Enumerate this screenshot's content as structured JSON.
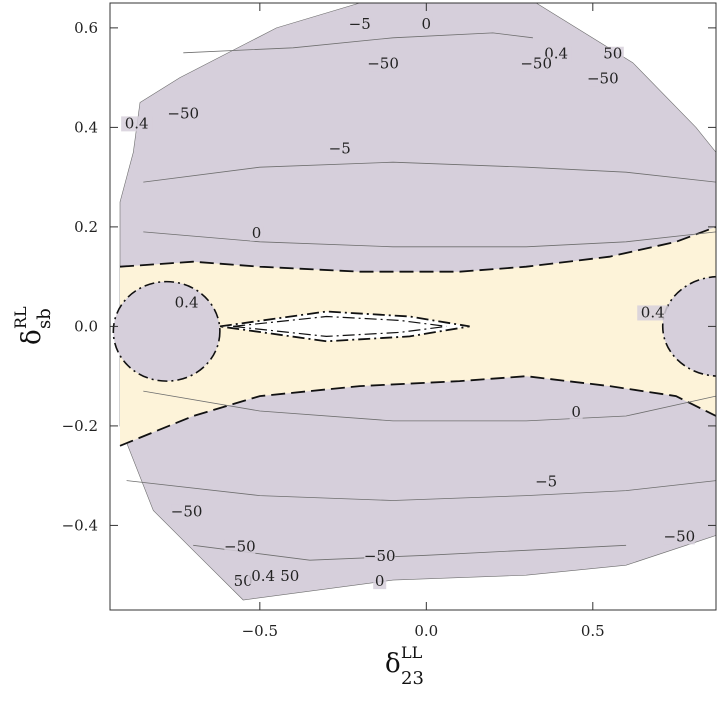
{
  "chart_data": {
    "type": "contour",
    "xlabel": {
      "symbol": "δ",
      "superscript": "LL",
      "subscript": "23"
    },
    "ylabel": {
      "symbol": "δ",
      "superscript": "RL",
      "subscript": "sb"
    },
    "xlim": [
      -0.95,
      0.87
    ],
    "ylim": [
      -0.57,
      0.65
    ],
    "x_ticks": [
      {
        "value": -0.5,
        "label": "−0.5"
      },
      {
        "value": 0.0,
        "label": "0.0"
      },
      {
        "value": 0.5,
        "label": "0.5"
      }
    ],
    "y_ticks": [
      {
        "value": -0.4,
        "label": "−0.4"
      },
      {
        "value": -0.2,
        "label": "−0.2"
      },
      {
        "value": 0.0,
        "label": "0.0"
      },
      {
        "value": 0.2,
        "label": "0.2"
      },
      {
        "value": 0.4,
        "label": "0.4"
      },
      {
        "value": 0.6,
        "label": "0.6"
      }
    ],
    "region_colors": {
      "outer_region": "#d6cfdb",
      "allowed_band": "#fdf3d9",
      "inner_region": "#ffffff",
      "contour_line": "#6e6e6e",
      "boundary_line": "#111111"
    },
    "domain_outline": [
      [
        -0.86,
        0.45
      ],
      [
        -0.74,
        0.5
      ],
      [
        -0.45,
        0.6
      ],
      [
        -0.2,
        0.65
      ],
      [
        0.33,
        0.65
      ],
      [
        0.62,
        0.53
      ],
      [
        0.81,
        0.4
      ],
      [
        0.87,
        0.35
      ],
      [
        0.87,
        -0.42
      ],
      [
        0.6,
        -0.48
      ],
      [
        0.3,
        -0.5
      ],
      [
        -0.1,
        -0.51
      ],
      [
        -0.55,
        -0.55
      ],
      [
        -0.7,
        -0.45
      ],
      [
        -0.82,
        -0.37
      ],
      [
        -0.92,
        -0.2
      ],
      [
        -0.92,
        0.25
      ],
      [
        -0.88,
        0.35
      ]
    ],
    "band_upper": [
      [
        -0.92,
        0.12
      ],
      [
        -0.7,
        0.13
      ],
      [
        -0.5,
        0.12
      ],
      [
        -0.2,
        0.11
      ],
      [
        0.1,
        0.11
      ],
      [
        0.3,
        0.12
      ],
      [
        0.55,
        0.14
      ],
      [
        0.75,
        0.17
      ],
      [
        0.87,
        0.2
      ]
    ],
    "band_lower": [
      [
        -0.92,
        -0.24
      ],
      [
        -0.7,
        -0.18
      ],
      [
        -0.5,
        -0.14
      ],
      [
        -0.2,
        -0.12
      ],
      [
        0.1,
        -0.11
      ],
      [
        0.3,
        -0.1
      ],
      [
        0.55,
        -0.12
      ],
      [
        0.75,
        -0.14
      ],
      [
        0.87,
        -0.18
      ]
    ],
    "thin_contours": [
      [
        [
          -0.85,
          0.29
        ],
        [
          -0.5,
          0.32
        ],
        [
          -0.1,
          0.33
        ],
        [
          0.3,
          0.32
        ],
        [
          0.6,
          0.31
        ],
        [
          0.87,
          0.29
        ]
      ],
      [
        [
          -0.85,
          0.19
        ],
        [
          -0.5,
          0.17
        ],
        [
          -0.1,
          0.16
        ],
        [
          0.3,
          0.16
        ],
        [
          0.6,
          0.17
        ],
        [
          0.87,
          0.19
        ]
      ],
      [
        [
          -0.85,
          -0.13
        ],
        [
          -0.5,
          -0.17
        ],
        [
          -0.1,
          -0.19
        ],
        [
          0.3,
          -0.19
        ],
        [
          0.6,
          -0.18
        ],
        [
          0.87,
          -0.14
        ]
      ],
      [
        [
          -0.9,
          -0.31
        ],
        [
          -0.5,
          -0.34
        ],
        [
          -0.1,
          -0.35
        ],
        [
          0.3,
          -0.34
        ],
        [
          0.6,
          -0.33
        ],
        [
          0.87,
          -0.31
        ]
      ],
      [
        [
          -0.73,
          0.55
        ],
        [
          -0.4,
          0.56
        ],
        [
          -0.1,
          0.58
        ],
        [
          0.2,
          0.59
        ],
        [
          0.32,
          0.58
        ]
      ],
      [
        [
          -0.7,
          -0.44
        ],
        [
          -0.35,
          -0.47
        ],
        [
          0.0,
          -0.46
        ],
        [
          0.3,
          -0.45
        ],
        [
          0.6,
          -0.44
        ]
      ]
    ],
    "contour_labels": [
      {
        "text": "−5",
        "x": -0.2,
        "y": 0.6
      },
      {
        "text": "0",
        "x": 0.0,
        "y": 0.6
      },
      {
        "text": "0.4",
        "x": 0.39,
        "y": 0.54
      },
      {
        "text": "50",
        "x": 0.56,
        "y": 0.54
      },
      {
        "text": "−50",
        "x": -0.13,
        "y": 0.52
      },
      {
        "text": "−50",
        "x": 0.33,
        "y": 0.52
      },
      {
        "text": "−50",
        "x": 0.53,
        "y": 0.49
      },
      {
        "text": "0.4",
        "x": -0.87,
        "y": 0.4
      },
      {
        "text": "−50",
        "x": -0.73,
        "y": 0.42
      },
      {
        "text": "−5",
        "x": -0.26,
        "y": 0.35
      },
      {
        "text": "0",
        "x": -0.51,
        "y": 0.18
      },
      {
        "text": "0.4",
        "x": -0.72,
        "y": 0.04
      },
      {
        "text": "0.4",
        "x": 0.68,
        "y": 0.02
      },
      {
        "text": "0",
        "x": 0.45,
        "y": -0.18
      },
      {
        "text": "−5",
        "x": 0.36,
        "y": -0.32
      },
      {
        "text": "−50",
        "x": -0.72,
        "y": -0.38
      },
      {
        "text": "−50",
        "x": 0.76,
        "y": -0.43
      },
      {
        "text": "−50",
        "x": -0.56,
        "y": -0.45
      },
      {
        "text": "−50",
        "x": -0.14,
        "y": -0.47
      },
      {
        "text": "50",
        "x": -0.55,
        "y": -0.52
      },
      {
        "text": "0.4",
        "x": -0.49,
        "y": -0.51
      },
      {
        "text": "50",
        "x": -0.41,
        "y": -0.51
      },
      {
        "text": "0",
        "x": -0.14,
        "y": -0.52
      }
    ]
  }
}
